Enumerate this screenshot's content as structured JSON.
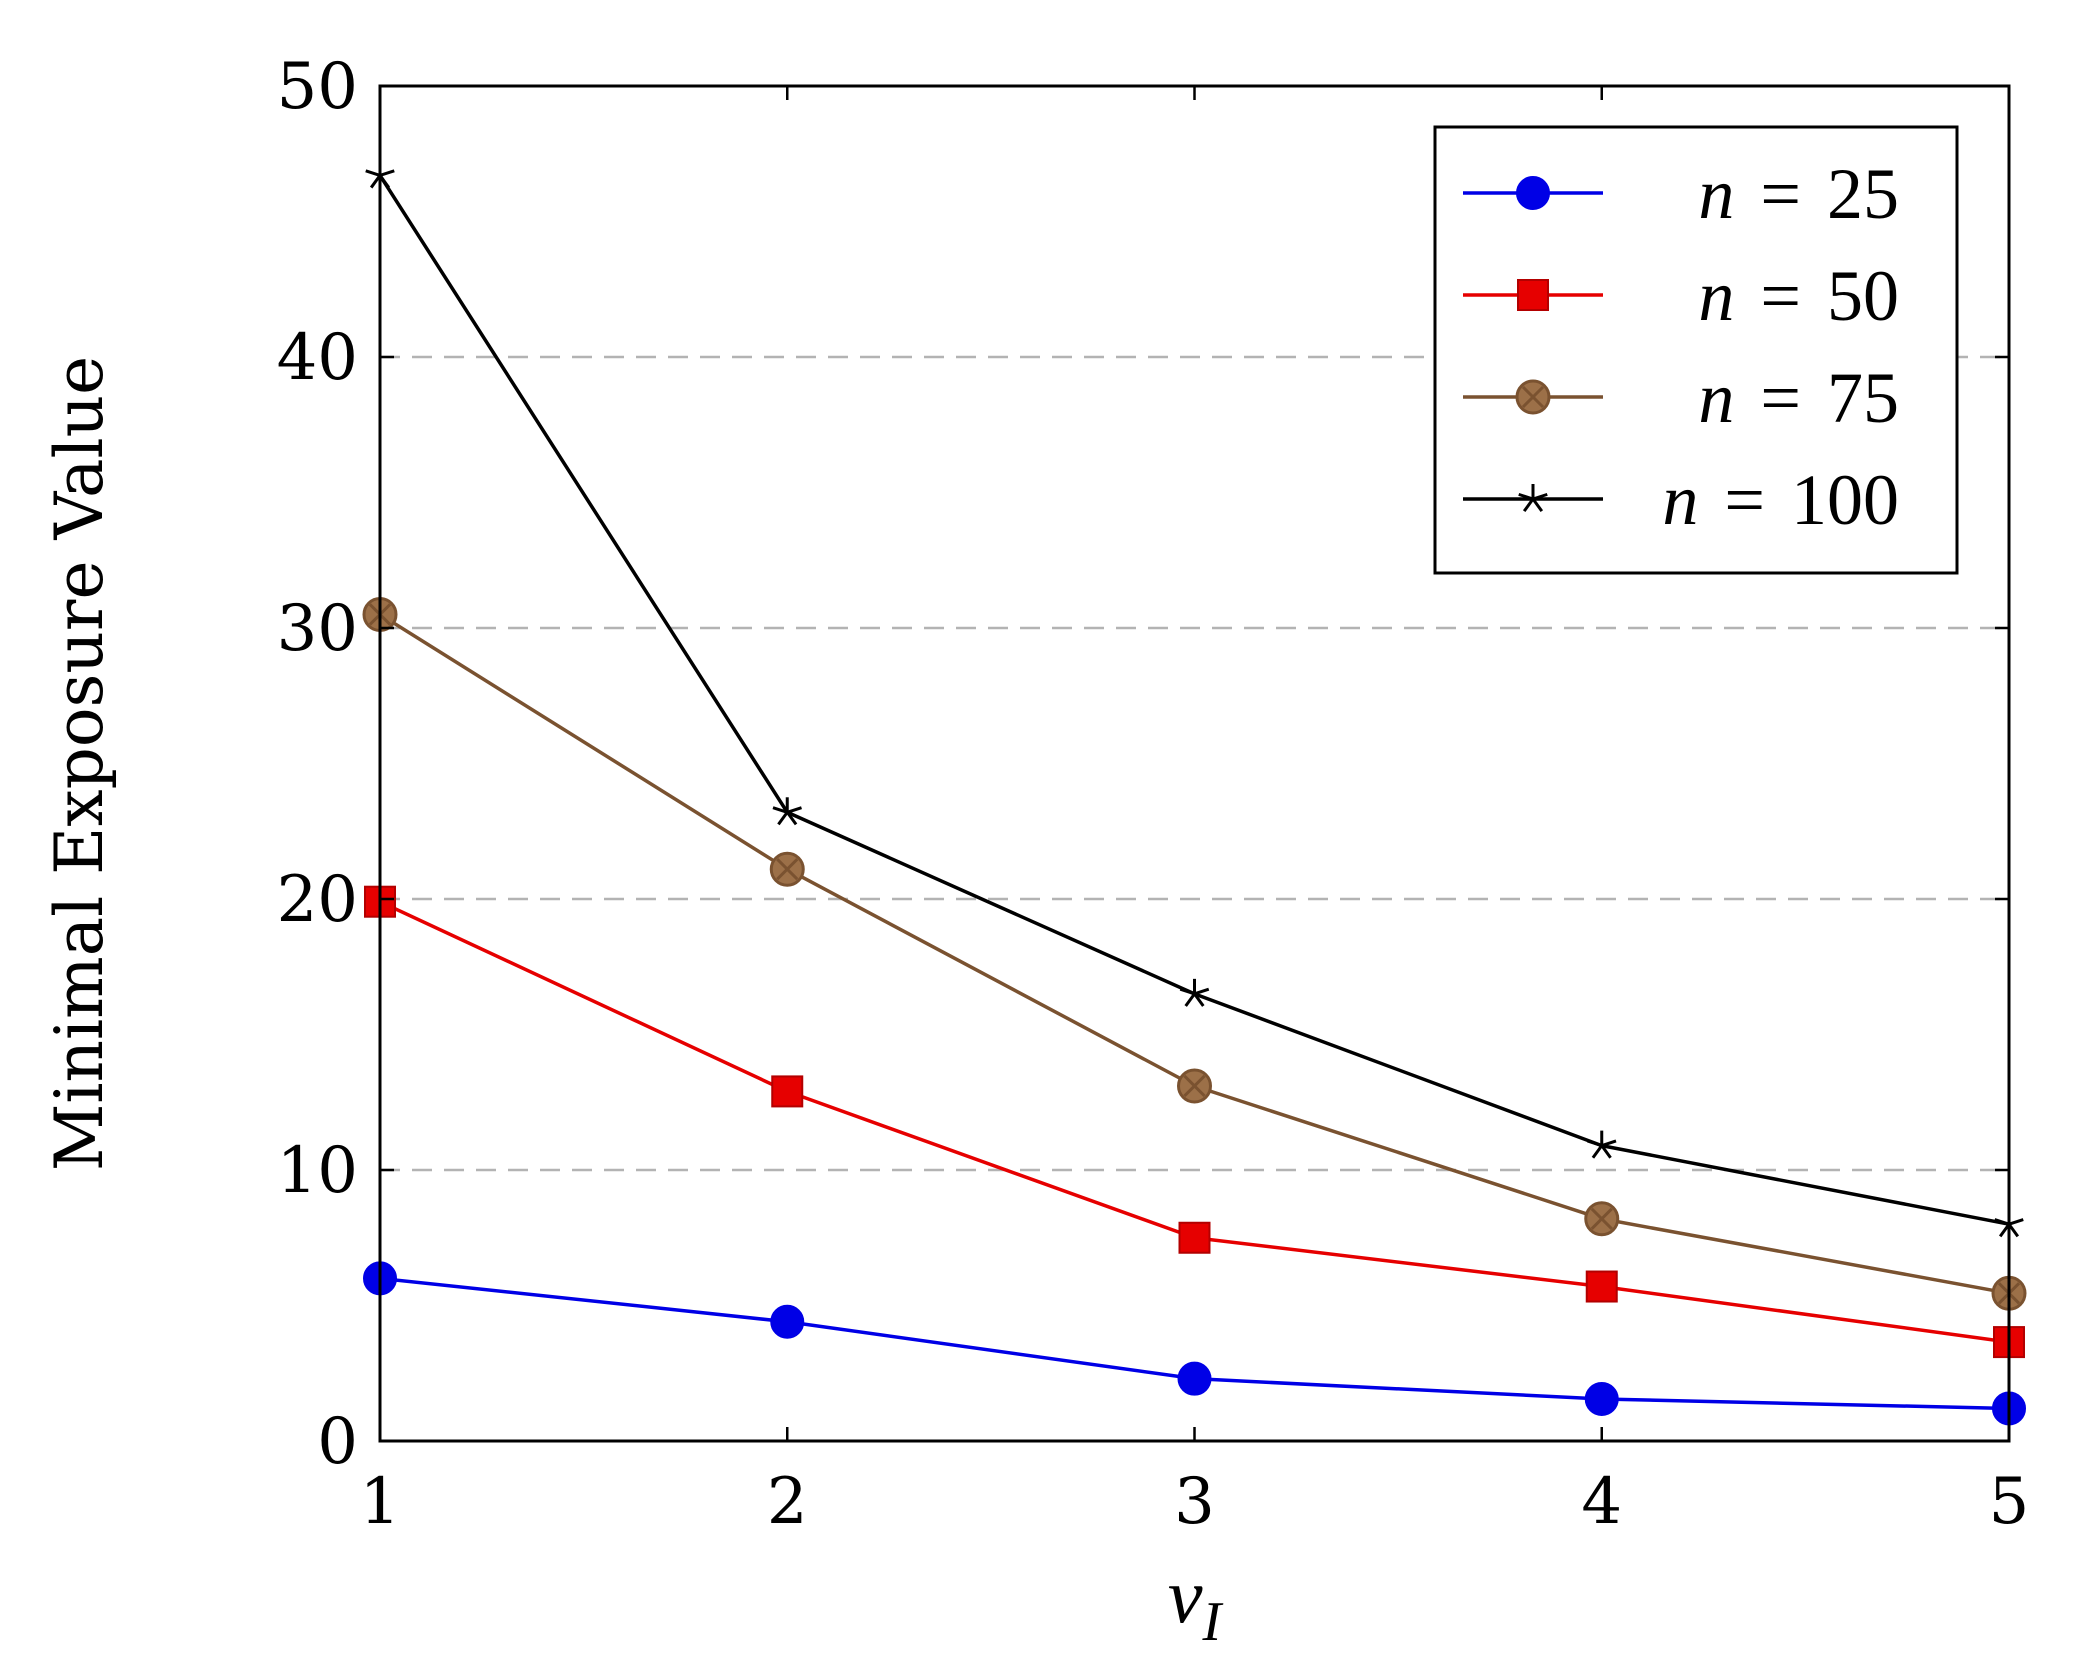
{
  "chart_data": {
    "type": "line",
    "title": "",
    "xlabel": "v",
    "xlabel_subscript": "I",
    "ylabel": "Minimal Exposure Value",
    "x": [
      1,
      2,
      3,
      4,
      5
    ],
    "xticks": [
      "1",
      "2",
      "3",
      "4",
      "5"
    ],
    "yticks": [
      "0",
      "10",
      "20",
      "30",
      "40",
      "50"
    ],
    "xlim": [
      1,
      5
    ],
    "ylim": [
      0,
      50
    ],
    "grid": "horizontal dashed",
    "legend_position": "top-right",
    "series": [
      {
        "name": "n = 25",
        "legend": {
          "var": "n",
          "op": "=",
          "num": "25"
        },
        "color": "#0000e6",
        "marker": "circle",
        "values": [
          6.0,
          4.4,
          2.3,
          1.55,
          1.2
        ]
      },
      {
        "name": "n = 50",
        "legend": {
          "var": "n",
          "op": "=",
          "num": "50"
        },
        "color": "#e60000",
        "marker": "square",
        "values": [
          19.9,
          12.9,
          7.5,
          5.7,
          3.65
        ]
      },
      {
        "name": "n = 75",
        "legend": {
          "var": "n",
          "op": "=",
          "num": "75"
        },
        "color": "#7a5230",
        "marker": "otimes",
        "values": [
          30.5,
          21.1,
          13.1,
          8.2,
          5.45
        ]
      },
      {
        "name": "n = 100",
        "legend": {
          "var": "n",
          "op": "=",
          "num": "100"
        },
        "color": "#000000",
        "marker": "star",
        "values": [
          46.7,
          23.2,
          16.5,
          10.9,
          8.0
        ]
      }
    ]
  }
}
